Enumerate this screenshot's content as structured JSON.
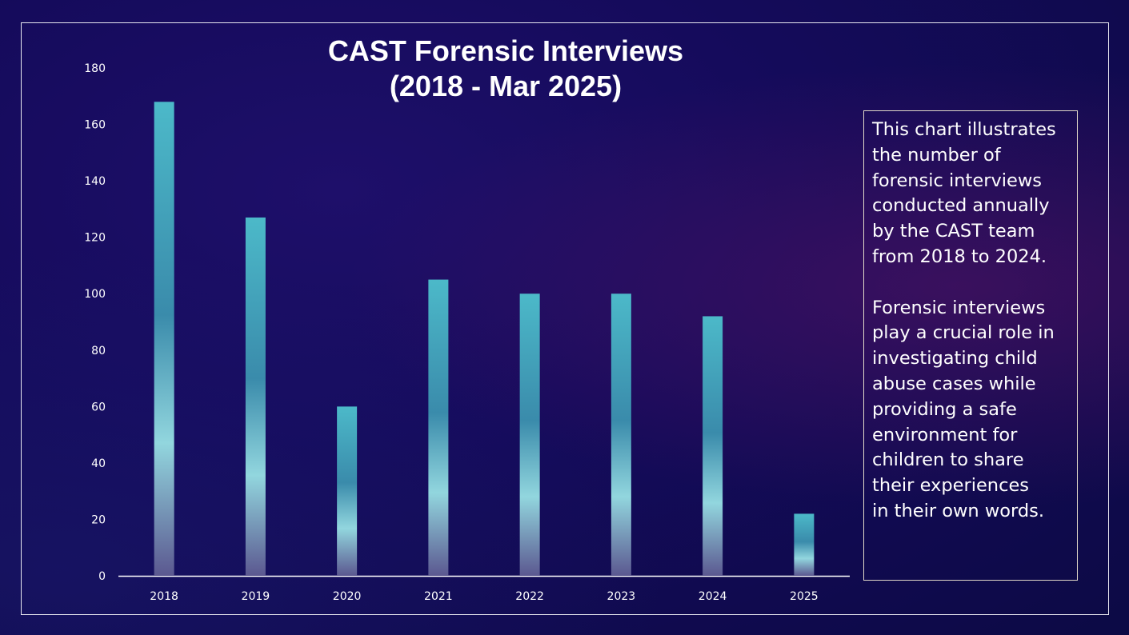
{
  "chart_data": {
    "type": "bar",
    "title": "CAST Forensic Interviews\n(2018 - Mar 2025)",
    "title_lines": [
      "CAST Forensic Interviews",
      "(2018 - Mar 2025)"
    ],
    "categories": [
      "2018",
      "2019",
      "2020",
      "2021",
      "2022",
      "2023",
      "2024",
      "2025"
    ],
    "values": [
      168,
      127,
      60,
      105,
      100,
      100,
      92,
      22
    ],
    "xlabel": "",
    "ylabel": "",
    "ylim": [
      0,
      180
    ],
    "yticks": [
      0,
      20,
      40,
      60,
      80,
      100,
      120,
      140,
      160,
      180
    ],
    "grid": false,
    "bar_colors": [
      "#4cb9c9",
      "#3a8bab",
      "#92d6de",
      "#5b5890"
    ]
  },
  "note": "This chart illustrates the number of forensic interviews conducted annually by the CAST team from 2018 to 2024.\n\nForensic interviews play a crucial role in investigating child abuse cases while providing a safe environment for children to share their experiences\nin their own words."
}
